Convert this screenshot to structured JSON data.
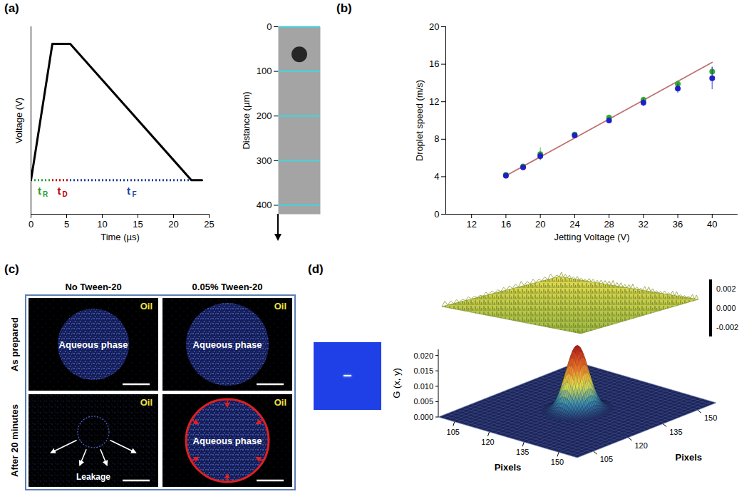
{
  "chart_data": [
    {
      "panel_label": "(a)",
      "type": "line",
      "x": [
        0,
        3,
        5.5,
        22.5,
        24
      ],
      "values": [
        0.2,
        1,
        1,
        0.2,
        0.2
      ],
      "color": "#000000",
      "xlim": [
        0,
        25
      ],
      "xticks": [
        0,
        5,
        10,
        15,
        20,
        25
      ],
      "ylim": [
        0,
        1.1
      ],
      "x_label": "Time (µs)",
      "y_label": "Voltage (V)",
      "tick_labels": "x",
      "segments": [
        {
          "label": "t",
          "subscript": "R",
          "start": 0,
          "end": 3,
          "color": "#2ca02c"
        },
        {
          "label": "t",
          "subscript": "D",
          "start": 3,
          "end": 5.5,
          "color": "#c00000"
        },
        {
          "label": "t",
          "subscript": "F",
          "start": 5.5,
          "end": 22.5,
          "color": "#1f3f9f"
        }
      ]
    },
    {
      "type": "image",
      "y_label": "Distance (µm)",
      "ylim": [
        0,
        420
      ],
      "yticks": [
        0,
        100,
        200,
        300,
        400
      ],
      "grid": true,
      "tick_labels": "y",
      "droplet_y": 62
    },
    {
      "panel_label": "(b)",
      "type": "scatter",
      "x": [
        16,
        18,
        20,
        24,
        28,
        32,
        36,
        40
      ],
      "series": [
        {
          "color": "#1f1fc8",
          "values": [
            4.1,
            5.0,
            6.2,
            8.4,
            10.0,
            11.9,
            13.4,
            14.5
          ],
          "errors": [
            0.2,
            0.2,
            0.4,
            0.1,
            0.3,
            0.4,
            0.5,
            1.2
          ]
        },
        {
          "color": "#33aa33",
          "values": [
            4.2,
            5.1,
            6.4,
            8.5,
            10.3,
            12.2,
            13.9,
            15.2
          ],
          "errors": [
            0.2,
            0.2,
            0.7,
            0.1,
            0.3,
            0.3,
            0.3,
            0.5
          ]
        }
      ],
      "fit": {
        "x": [
          16,
          40
        ],
        "values": [
          4.1,
          16.2
        ],
        "color": "#c07070"
      },
      "xlim": [
        9,
        43
      ],
      "xticks": [
        12,
        16,
        20,
        24,
        28,
        32,
        36,
        40
      ],
      "ylim": [
        0,
        20
      ],
      "yticks": [
        0,
        4,
        8,
        12,
        16,
        20
      ],
      "x_label": "Jetting Voltage (V)",
      "y_label": "Droplet speed (m/s)"
    },
    {
      "panel_label": "(d)",
      "type": "surface",
      "z_label": "G (x, y)",
      "x_label": "Pixels",
      "y_label": "Pixels",
      "xlim": [
        98,
        158
      ],
      "xticks": [
        105,
        120,
        135,
        150
      ],
      "ylim": [
        98,
        158
      ],
      "yticks": [
        105,
        120,
        135,
        150
      ],
      "zlim": [
        0,
        0.022
      ],
      "zticks": [
        {
          "value": 0,
          "label": "0.000"
        },
        {
          "value": 0.005,
          "label": "0.005"
        },
        {
          "value": 0.01,
          "label": "0.010"
        },
        {
          "value": 0.015,
          "label": "0.015"
        },
        {
          "value": 0.02,
          "label": "0.020"
        }
      ],
      "peak": {
        "x": 128,
        "y": 128,
        "height": 0.021,
        "width": 3.5
      },
      "residual_colorbar": {
        "range": [
          -0.003,
          0.003
        ],
        "ticks": [
          {
            "value": 0.002,
            "label": "0.002"
          },
          {
            "value": 0,
            "label": "0.000"
          },
          {
            "value": -0.002,
            "label": "-0.002"
          }
        ]
      }
    }
  ],
  "microscopy": {
    "panel_label": "(c)",
    "columns": [
      "No Tween-20",
      "0.05% Tween-20"
    ],
    "rows": [
      "As prepared",
      "After 20 minutes"
    ],
    "cells": [
      [
        {
          "corner": "Oil",
          "center": "Aqueous phase"
        },
        {
          "corner": "Oil",
          "center": "Aqueous phase"
        }
      ],
      [
        {
          "corner": "Oil",
          "bottom": "Leakage"
        },
        {
          "corner": "Oil",
          "center": "Aqueous phase"
        }
      ]
    ]
  }
}
